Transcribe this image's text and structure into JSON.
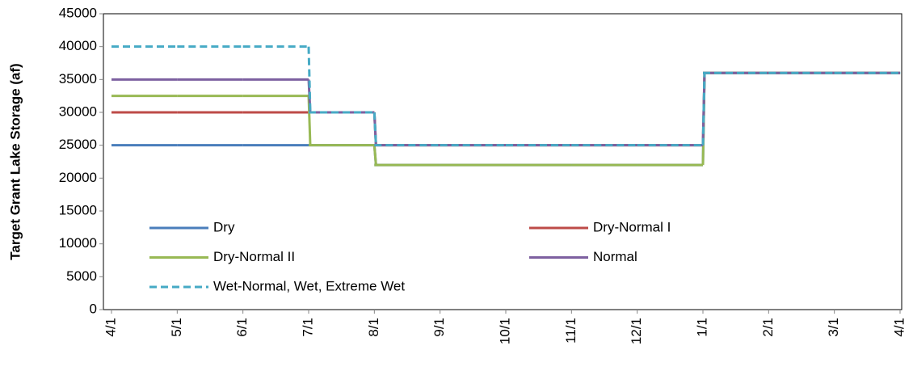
{
  "chart_data": {
    "type": "line",
    "step": "post",
    "ylabel": "Target Grant Lake Storage (af)",
    "categories": [
      "4/1",
      "5/1",
      "6/1",
      "7/1",
      "8/1",
      "9/1",
      "10/1",
      "11/1",
      "12/1",
      "1/1",
      "2/1",
      "3/1",
      "4/1"
    ],
    "ylim": [
      0,
      45000
    ],
    "yticks": [
      0,
      5000,
      10000,
      15000,
      20000,
      25000,
      30000,
      35000,
      40000,
      45000
    ],
    "grid": false,
    "series": [
      {
        "name": "Dry",
        "color": "#4a7ebb",
        "dashed": false,
        "values": [
          25000,
          25000,
          25000,
          25000,
          22000,
          22000,
          22000,
          22000,
          22000,
          36000,
          36000,
          36000,
          36000
        ]
      },
      {
        "name": "Dry-Normal I",
        "color": "#be4b48",
        "dashed": false,
        "values": [
          30000,
          30000,
          30000,
          30000,
          25000,
          25000,
          25000,
          25000,
          25000,
          36000,
          36000,
          36000,
          36000
        ]
      },
      {
        "name": "Dry-Normal II",
        "color": "#98b954",
        "dashed": false,
        "values": [
          32500,
          32500,
          32500,
          25000,
          22000,
          22000,
          22000,
          22000,
          22000,
          36000,
          36000,
          36000,
          36000
        ]
      },
      {
        "name": "Normal",
        "color": "#7d60a0",
        "dashed": false,
        "values": [
          35000,
          35000,
          35000,
          30000,
          25000,
          25000,
          25000,
          25000,
          25000,
          36000,
          36000,
          36000,
          36000
        ]
      },
      {
        "name": "Wet-Normal, Wet, Extreme Wet",
        "color": "#46aac5",
        "dashed": true,
        "values": [
          40000,
          40000,
          40000,
          30000,
          25000,
          25000,
          25000,
          25000,
          25000,
          36000,
          36000,
          36000,
          36000
        ]
      }
    ]
  }
}
